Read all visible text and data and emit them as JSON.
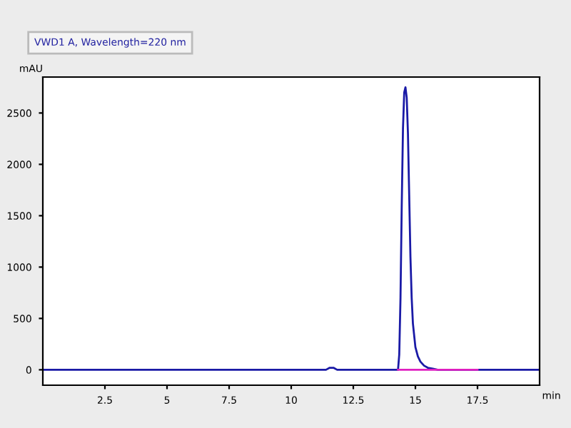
{
  "chart_data": {
    "type": "line",
    "title": "VWD1 A, Wavelength=220 nm",
    "xlabel": "min",
    "ylabel": "mAU",
    "xlim": [
      0,
      20
    ],
    "ylim": [
      -150,
      2850
    ],
    "xticks": [
      2.5,
      5,
      7.5,
      10,
      12.5,
      15,
      17.5
    ],
    "yticks": [
      0,
      500,
      1000,
      1500,
      2000,
      2500
    ],
    "grid": false,
    "legend": false,
    "series": [
      {
        "color": "#1a1aa6",
        "x": [
          0,
          5,
          10,
          11.4,
          11.55,
          11.7,
          11.85,
          14.3,
          14.35,
          14.4,
          14.45,
          14.5,
          14.55,
          14.6,
          14.65,
          14.7,
          14.75,
          14.8,
          14.85,
          14.9,
          15.0,
          15.1,
          15.2,
          15.35,
          15.5,
          15.7,
          15.9,
          17,
          20
        ],
        "values": [
          0,
          0,
          0,
          0,
          20,
          20,
          0,
          0,
          150,
          700,
          1600,
          2350,
          2700,
          2750,
          2650,
          2300,
          1700,
          1100,
          700,
          450,
          220,
          130,
          80,
          40,
          20,
          10,
          0,
          0,
          0
        ]
      },
      {
        "color": "#e020c0",
        "x": [
          14.3,
          17.5
        ],
        "values": [
          0,
          0
        ]
      }
    ]
  }
}
